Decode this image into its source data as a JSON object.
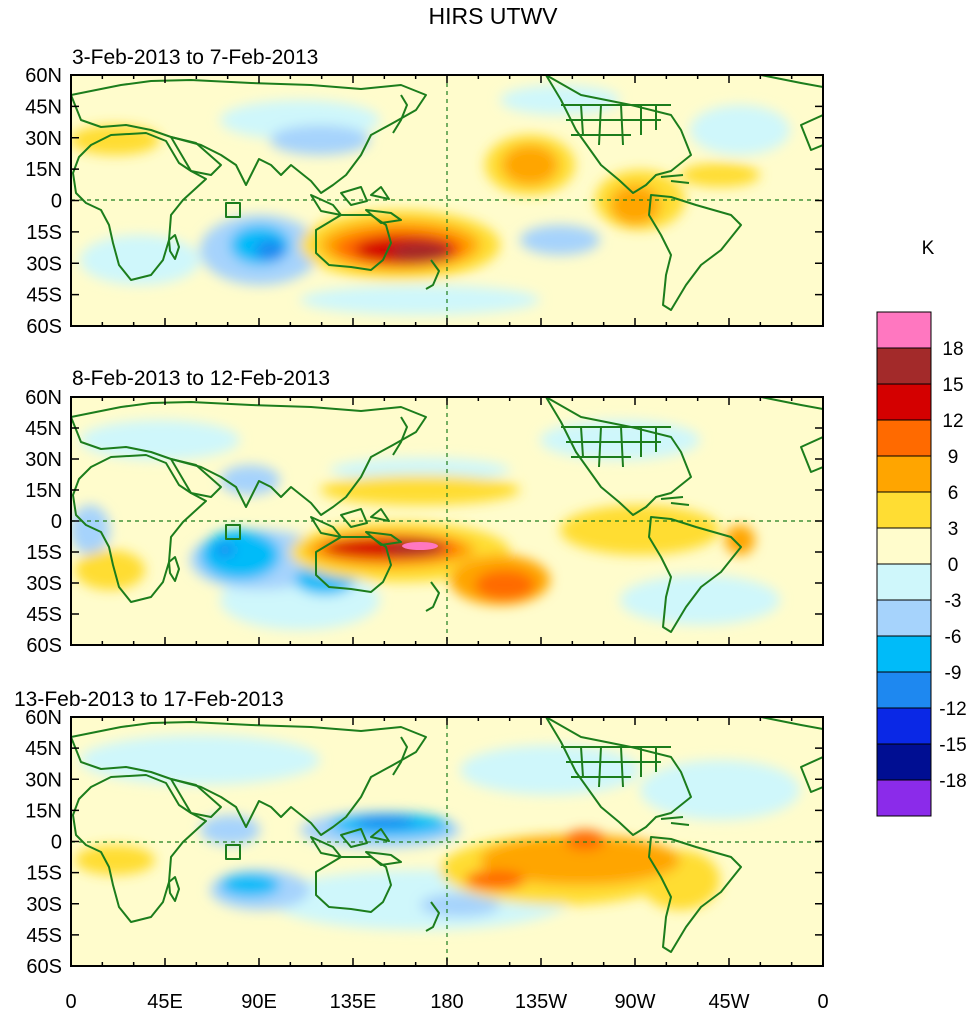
{
  "title": "HIRS UTWV",
  "panels": [
    {
      "subtitle": "3-Feb-2013 to 7-Feb-2013"
    },
    {
      "subtitle": "8-Feb-2013 to 12-Feb-2013"
    },
    {
      "subtitle": "13-Feb-2013 to 17-Feb-2013"
    }
  ],
  "lat_labels": [
    "60N",
    "45N",
    "30N",
    "15N",
    "0",
    "15S",
    "30S",
    "45S",
    "60S"
  ],
  "lon_labels": [
    "0",
    "45E",
    "90E",
    "135E",
    "180",
    "135W",
    "90W",
    "45W",
    "0"
  ],
  "colorbar": {
    "units": "K",
    "labels": [
      "18",
      "15",
      "12",
      "9",
      "6",
      "3",
      "0",
      "-3",
      "-6",
      "-9",
      "-12",
      "-15",
      "-18"
    ],
    "colors": [
      "#ff77c0",
      "#a32a2a",
      "#d40000",
      "#ff6a00",
      "#ffa500",
      "#ffdd33",
      "#fffccc",
      "#cff7fb",
      "#a6d3fc",
      "#00bbf9",
      "#1e88f0",
      "#0a28e6",
      "#000e92",
      "#8b2bea"
    ]
  },
  "colors": {
    "coast": "#1c7d1c",
    "neutral_pos": "#fffccc",
    "neutral_neg": "#cff7fb"
  }
}
